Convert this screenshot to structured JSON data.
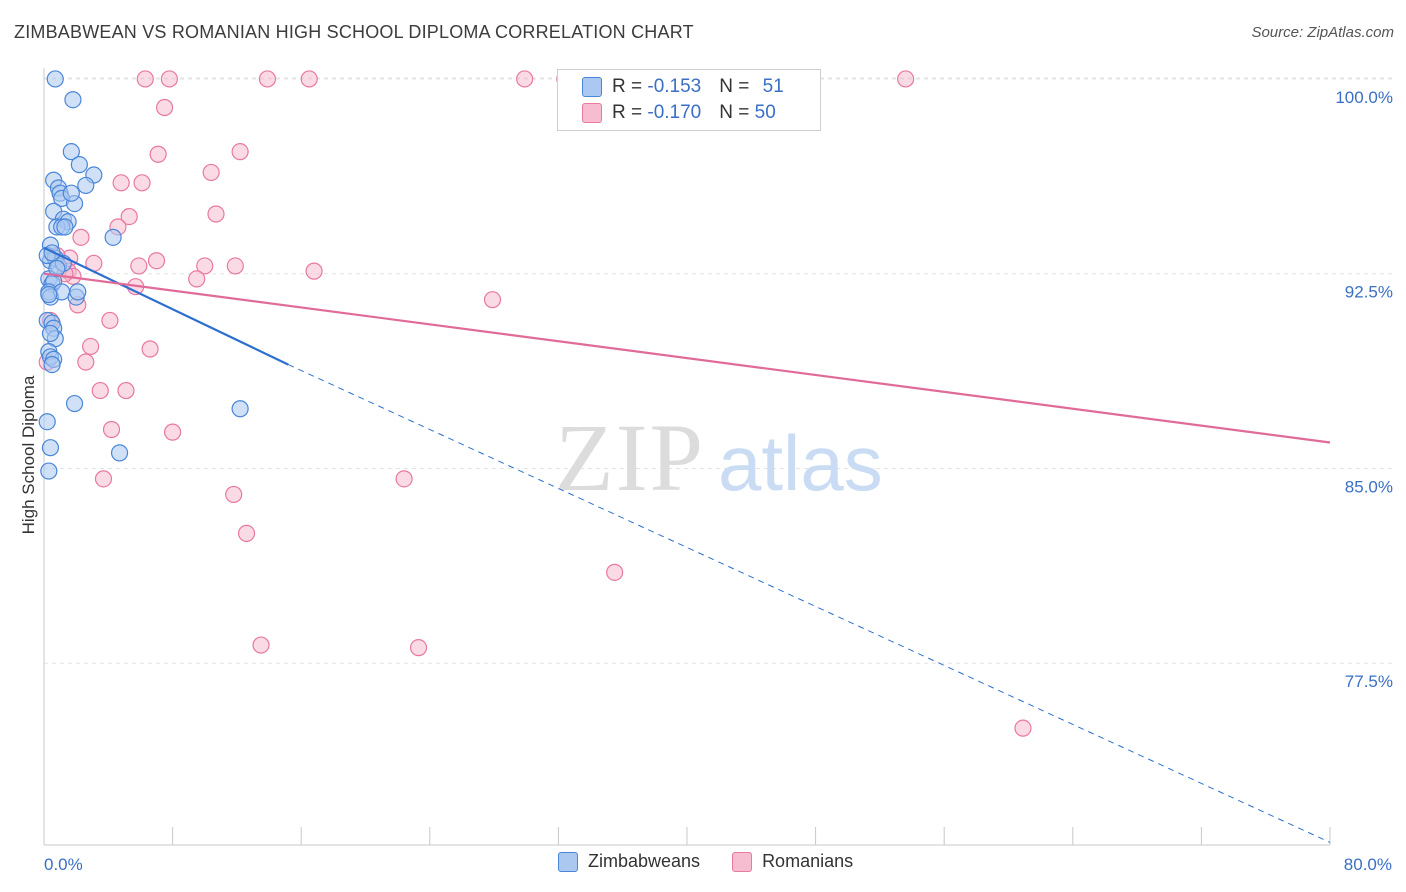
{
  "title": "ZIMBABWEAN VS ROMANIAN HIGH SCHOOL DIPLOMA CORRELATION CHART",
  "source": "Source: ZipAtlas.com",
  "legend": {
    "row1": {
      "r_label": "R = ",
      "r_value": "-0.153",
      "n_label": "N = ",
      "n_value": "51"
    },
    "row2": {
      "r_label": "R = ",
      "r_value": "-0.170",
      "n_label": "N = ",
      "n_value": "50"
    }
  },
  "colors": {
    "blue_fill": "#aac8f0",
    "blue_stroke": "#4a86d8",
    "blue_line": "#2c6fcf",
    "pink_fill": "#f6bcd0",
    "pink_stroke": "#e8799f",
    "pink_line": "#e06b98",
    "tick_color": "#3a6fc4",
    "grid": "#e3e3e3"
  },
  "chart_data": {
    "type": "scatter",
    "title": "ZIMBABWEAN VS ROMANIAN HIGH SCHOOL DIPLOMA CORRELATION CHART",
    "xlabel": "",
    "ylabel": "High School Diploma",
    "xlim": [
      0,
      80
    ],
    "ylim": [
      70.5,
      101.5
    ],
    "x_ticks": [
      {
        "value": 0,
        "label": "0.0%"
      },
      {
        "value": 80,
        "label": "80.0%"
      }
    ],
    "y_ticks": [
      {
        "value": 100,
        "label": "100.0%"
      },
      {
        "value": 92.5,
        "label": "92.5%"
      },
      {
        "value": 85,
        "label": "85.0%"
      },
      {
        "value": 77.5,
        "label": "77.5%"
      }
    ],
    "x_minor_ticks": [
      8,
      16,
      24,
      32,
      40,
      48,
      56,
      64,
      72,
      80
    ],
    "watermark": {
      "zip": "ZIP",
      "atlas": "atlas"
    },
    "series": [
      {
        "name": "Zimbabweans",
        "color": "blue",
        "points": [
          [
            0.7,
            100.0
          ],
          [
            1.8,
            99.2
          ],
          [
            1.7,
            97.2
          ],
          [
            2.2,
            96.7
          ],
          [
            3.1,
            96.3
          ],
          [
            2.6,
            95.9
          ],
          [
            0.6,
            96.1
          ],
          [
            0.9,
            95.8
          ],
          [
            1.0,
            95.6
          ],
          [
            1.1,
            95.4
          ],
          [
            1.9,
            95.2
          ],
          [
            1.7,
            95.6
          ],
          [
            0.6,
            94.9
          ],
          [
            1.2,
            94.6
          ],
          [
            1.5,
            94.5
          ],
          [
            0.8,
            94.3
          ],
          [
            1.1,
            94.3
          ],
          [
            1.3,
            94.3
          ],
          [
            4.3,
            93.9
          ],
          [
            0.4,
            93.6
          ],
          [
            0.4,
            93.0
          ],
          [
            0.7,
            93.1
          ],
          [
            0.9,
            92.8
          ],
          [
            1.2,
            92.9
          ],
          [
            0.3,
            92.3
          ],
          [
            0.5,
            92.1
          ],
          [
            0.6,
            92.2
          ],
          [
            0.3,
            91.8
          ],
          [
            0.4,
            91.6
          ],
          [
            1.1,
            91.8
          ],
          [
            0.3,
            91.7
          ],
          [
            2.0,
            91.6
          ],
          [
            2.1,
            91.8
          ],
          [
            0.2,
            90.7
          ],
          [
            0.5,
            90.6
          ],
          [
            0.6,
            90.4
          ],
          [
            0.7,
            90.0
          ],
          [
            0.3,
            89.5
          ],
          [
            0.4,
            89.3
          ],
          [
            0.6,
            89.2
          ],
          [
            0.5,
            89.0
          ],
          [
            12.2,
            87.3
          ],
          [
            1.9,
            87.5
          ],
          [
            0.2,
            86.8
          ],
          [
            0.4,
            85.8
          ],
          [
            4.7,
            85.6
          ],
          [
            0.3,
            84.9
          ],
          [
            0.2,
            93.2
          ],
          [
            0.5,
            93.3
          ],
          [
            0.8,
            92.7
          ],
          [
            0.4,
            90.2
          ]
        ]
      },
      {
        "name": "Romanians",
        "color": "pink",
        "points": [
          [
            6.3,
            100.0
          ],
          [
            7.8,
            100.0
          ],
          [
            13.9,
            100.0
          ],
          [
            16.5,
            100.0
          ],
          [
            29.9,
            100.0
          ],
          [
            32.4,
            100.0
          ],
          [
            53.6,
            100.0
          ],
          [
            7.5,
            98.9
          ],
          [
            7.1,
            97.1
          ],
          [
            12.2,
            97.2
          ],
          [
            10.4,
            96.4
          ],
          [
            4.8,
            96.0
          ],
          [
            6.1,
            96.0
          ],
          [
            10.7,
            94.8
          ],
          [
            5.3,
            94.7
          ],
          [
            4.6,
            94.3
          ],
          [
            2.3,
            93.9
          ],
          [
            1.6,
            93.1
          ],
          [
            7.0,
            93.0
          ],
          [
            5.9,
            92.8
          ],
          [
            3.1,
            92.9
          ],
          [
            11.9,
            92.8
          ],
          [
            10.0,
            92.8
          ],
          [
            16.8,
            92.6
          ],
          [
            1.5,
            92.6
          ],
          [
            9.5,
            92.3
          ],
          [
            5.7,
            92.0
          ],
          [
            27.9,
            91.5
          ],
          [
            2.1,
            91.3
          ],
          [
            4.1,
            90.7
          ],
          [
            0.4,
            90.7
          ],
          [
            6.6,
            89.6
          ],
          [
            2.9,
            89.7
          ],
          [
            2.6,
            89.1
          ],
          [
            0.2,
            89.1
          ],
          [
            3.5,
            88.0
          ],
          [
            5.1,
            88.0
          ],
          [
            4.2,
            86.5
          ],
          [
            8.0,
            86.4
          ],
          [
            22.4,
            84.6
          ],
          [
            3.7,
            84.6
          ],
          [
            11.8,
            84.0
          ],
          [
            12.6,
            82.5
          ],
          [
            35.5,
            81.0
          ],
          [
            13.5,
            78.2
          ],
          [
            23.3,
            78.1
          ],
          [
            60.9,
            75.0
          ],
          [
            1.8,
            92.4
          ],
          [
            0.8,
            93.2
          ],
          [
            1.3,
            92.5
          ]
        ]
      }
    ],
    "trend_lines": [
      {
        "series": "Zimbabweans",
        "solid": [
          [
            0,
            93.5
          ],
          [
            15.2,
            89.0
          ]
        ],
        "dashed": [
          [
            15.2,
            89.0
          ],
          [
            80,
            70.6
          ]
        ]
      },
      {
        "series": "Romanians",
        "solid": [
          [
            0,
            92.5
          ],
          [
            80,
            86.0
          ]
        ]
      }
    ]
  },
  "bottom_legend": [
    {
      "label": "Zimbabweans",
      "color": "blue"
    },
    {
      "label": "Romanians",
      "color": "pink"
    }
  ]
}
